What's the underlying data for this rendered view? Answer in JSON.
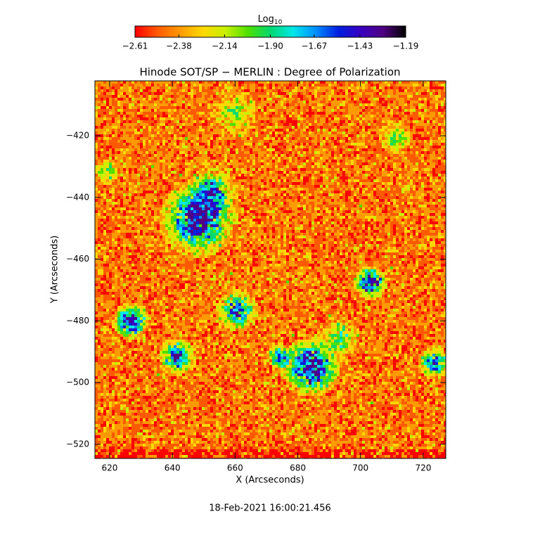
{
  "chart_data": {
    "type": "heatmap",
    "title": "Hinode SOT/SP − MERLIN : Degree of Polarization",
    "x_label": "X (Arcseconds)",
    "y_label": "Y (Arcseconds)",
    "footer": "18-Feb-2021 16:00:21.456",
    "colorbar_label": {
      "base": "Log",
      "subscript": "10"
    },
    "colorbar_lim": [
      -2.61,
      -1.19
    ],
    "colorbar_ticks": [
      {
        "value": -2.61,
        "label": "−2.61"
      },
      {
        "value": -2.38,
        "label": "−2.38"
      },
      {
        "value": -2.14,
        "label": "−2.14"
      },
      {
        "value": -1.9,
        "label": "−1.90"
      },
      {
        "value": -1.67,
        "label": "−1.67"
      },
      {
        "value": -1.43,
        "label": "−1.43"
      },
      {
        "value": -1.19,
        "label": "−1.19"
      }
    ],
    "colormap": [
      "#ff0000",
      "#ff5a00",
      "#ff9a00",
      "#ffd800",
      "#c8f000",
      "#50e000",
      "#00d870",
      "#00e8e8",
      "#0090ff",
      "#0020e0",
      "#3800c0",
      "#500080",
      "#000000"
    ],
    "xlim": [
      615.3,
      727.2
    ],
    "xticks": [
      620,
      640,
      660,
      680,
      700,
      720
    ],
    "ylim": [
      -524.6,
      -402.2
    ],
    "yticks": [
      {
        "value": -420,
        "label": "−420"
      },
      {
        "value": -440,
        "label": "−440"
      },
      {
        "value": -460,
        "label": "−460"
      },
      {
        "value": -480,
        "label": "−480"
      },
      {
        "value": -500,
        "label": "−500"
      },
      {
        "value": -520,
        "label": "−520"
      }
    ]
  }
}
